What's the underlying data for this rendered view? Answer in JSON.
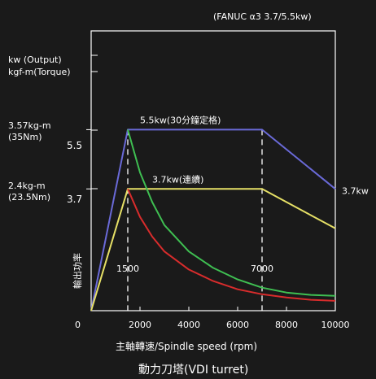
{
  "chart_data": {
    "type": "line",
    "title": "(FANUC α3  3.7/5.5kw)",
    "subtitle": "動力刀塔(VDI turret)",
    "xlabel": "主軸轉速/Spindle speed (rpm)",
    "ylabel": "輸出功率",
    "y_axis_title": [
      "kw (Output)",
      "kgf-m(Torque)"
    ],
    "xlim": [
      0,
      10000
    ],
    "ylim": [
      0,
      8.5
    ],
    "x_ticks": [
      2000,
      4000,
      6000,
      8000,
      10000
    ],
    "x_tick_labels": [
      "2000",
      "4000",
      "6000",
      "8000",
      "10000"
    ],
    "x_origin_label": "0",
    "y_ticks": [
      {
        "value": 5.5,
        "label": "5.5",
        "torque": [
          "3.57kg-m",
          "(35Nm)"
        ]
      },
      {
        "value": 3.7,
        "label": "3.7",
        "torque": [
          "2.4kg-m",
          "(23.5Nm)"
        ]
      }
    ],
    "markers": [
      {
        "x": 1500,
        "label": "1500"
      },
      {
        "x": 7000,
        "label": "7000"
      }
    ],
    "series": [
      {
        "name": "5.5kw(30分鐘定格)",
        "color": "#6a6ad8",
        "x": [
          0,
          1500,
          7000,
          10000
        ],
        "y": [
          0,
          5.5,
          5.5,
          3.7
        ]
      },
      {
        "name": "3.7kw(連續)",
        "color": "#e6e066",
        "x": [
          0,
          1500,
          7000,
          10000
        ],
        "y": [
          0,
          3.7,
          3.7,
          2.5
        ]
      },
      {
        "name": "",
        "color": "#3fbf52",
        "x": [
          1500,
          2000,
          2500,
          3000,
          4000,
          5000,
          6000,
          7000,
          8000,
          9000,
          10000
        ],
        "y": [
          5.5,
          4.2,
          3.3,
          2.6,
          1.8,
          1.3,
          0.95,
          0.7,
          0.55,
          0.48,
          0.45
        ]
      },
      {
        "name": "",
        "color": "#d82c2c",
        "x": [
          1500,
          2000,
          2500,
          3000,
          4000,
          5000,
          6000,
          7000,
          8000,
          9000,
          10000
        ],
        "y": [
          3.7,
          2.85,
          2.25,
          1.8,
          1.25,
          0.9,
          0.65,
          0.5,
          0.4,
          0.33,
          0.3
        ]
      }
    ],
    "annotations": [
      {
        "text": "5.5kw(30分鐘定格)",
        "x": 2000,
        "y": 5.5
      },
      {
        "text": "3.7kw(連續)",
        "x": 2500,
        "y": 3.7
      },
      {
        "text": "3.7kw",
        "x": 10000,
        "y": 3.7
      }
    ]
  }
}
